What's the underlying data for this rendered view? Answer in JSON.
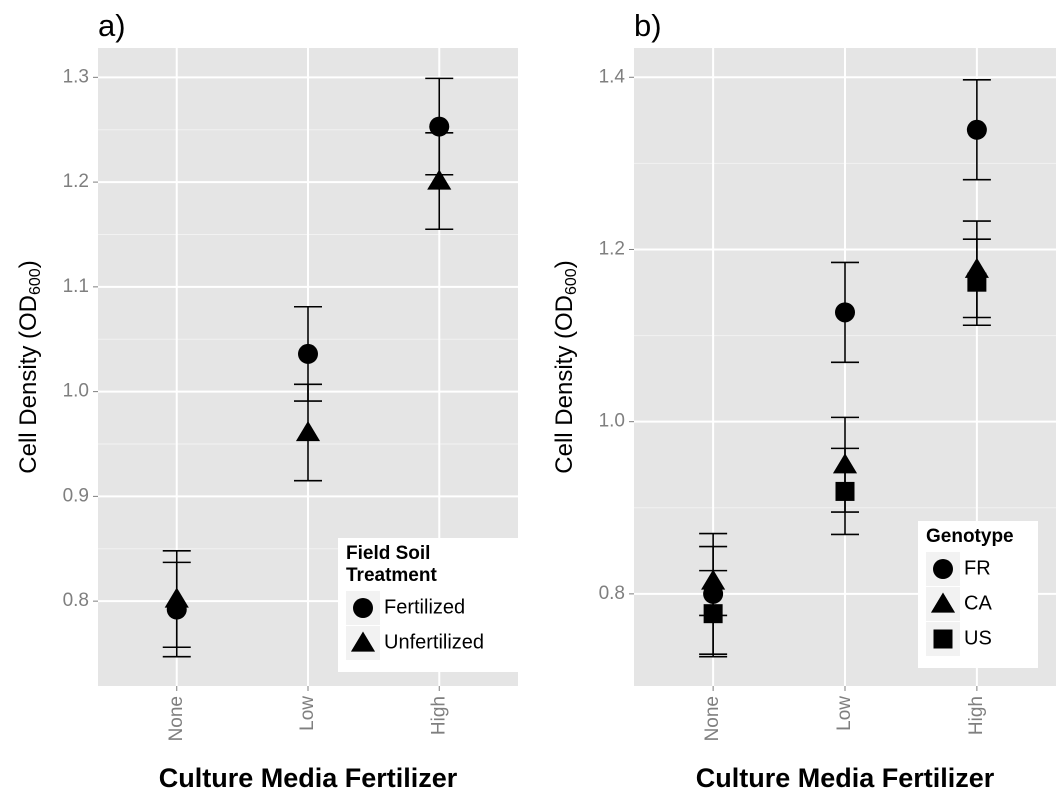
{
  "chart_data": [
    {
      "type": "errorbar",
      "panel_label": "a)",
      "x_label": "Culture Media Fertilizer",
      "y_label": {
        "main": "Cell Density (OD",
        "sub": "600",
        "close": ")"
      },
      "categories": [
        "None",
        "Low",
        "High"
      ],
      "ylim": [
        0.719,
        1.328
      ],
      "yticks": [
        0.8,
        0.9,
        {
          "value": 1.0,
          "label": "1.0"
        },
        1.1,
        1.2,
        1.3
      ],
      "grid": true,
      "legend_position": "bottom-right",
      "legend_title": [
        "Field Soil",
        "Treatment"
      ],
      "series": [
        {
          "name": "Fertilized",
          "color": "#000000",
          "shape": "circle",
          "values": [
            0.792,
            1.036,
            1.253
          ],
          "errors": [
            0.045,
            0.045,
            0.046
          ]
        },
        {
          "name": "Unfertilized",
          "color": "#000000",
          "shape": "triangle",
          "values": [
            0.802,
            0.961,
            1.201
          ],
          "errors": [
            0.046,
            0.046,
            0.046
          ]
        }
      ]
    },
    {
      "type": "errorbar",
      "panel_label": "b)",
      "x_label": "Culture Media Fertilizer",
      "y_label": {
        "main": "Cell Density (OD",
        "sub": "600",
        "close": ")"
      },
      "categories": [
        "None",
        "Low",
        "High"
      ],
      "ylim": [
        0.693,
        1.434
      ],
      "yticks": [
        0.8,
        {
          "value": 1.0,
          "label": "1.0"
        },
        1.2,
        1.4
      ],
      "grid": true,
      "legend_position": "bottom-right",
      "legend_title": [
        "Genotype"
      ],
      "series": [
        {
          "name": "FR",
          "color": "#000000",
          "shape": "circle",
          "values": [
            0.8,
            1.127,
            1.339
          ],
          "errors": [
            0.07,
            0.058,
            0.058
          ]
        },
        {
          "name": "CA",
          "color": "#000000",
          "shape": "triangle",
          "values": [
            0.815,
            0.95,
            1.177
          ],
          "errors": [
            0.04,
            0.055,
            0.056
          ]
        },
        {
          "name": "US",
          "color": "#000000",
          "shape": "square",
          "values": [
            0.777,
            0.919,
            1.162
          ],
          "errors": [
            0.05,
            0.05,
            0.05
          ]
        }
      ]
    }
  ]
}
